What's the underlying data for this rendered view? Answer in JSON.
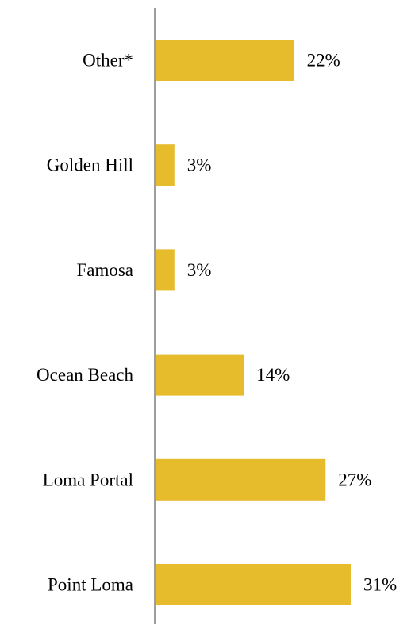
{
  "chart_data": {
    "type": "bar",
    "orientation": "horizontal",
    "categories": [
      "Other*",
      "Golden Hill",
      "Famosa",
      "Ocean Beach",
      "Loma Portal",
      "Point Loma"
    ],
    "values": [
      22,
      3,
      3,
      14,
      27,
      31
    ],
    "value_labels": [
      "22%",
      "3%",
      "3%",
      "14%",
      "27%",
      "31%"
    ],
    "unit": "%",
    "xlim": [
      0,
      31
    ],
    "grid": false,
    "legend": "none",
    "colors": {
      "bar": "#E6BB2C",
      "axis": "#7F7F7F",
      "text": "#000000"
    }
  }
}
